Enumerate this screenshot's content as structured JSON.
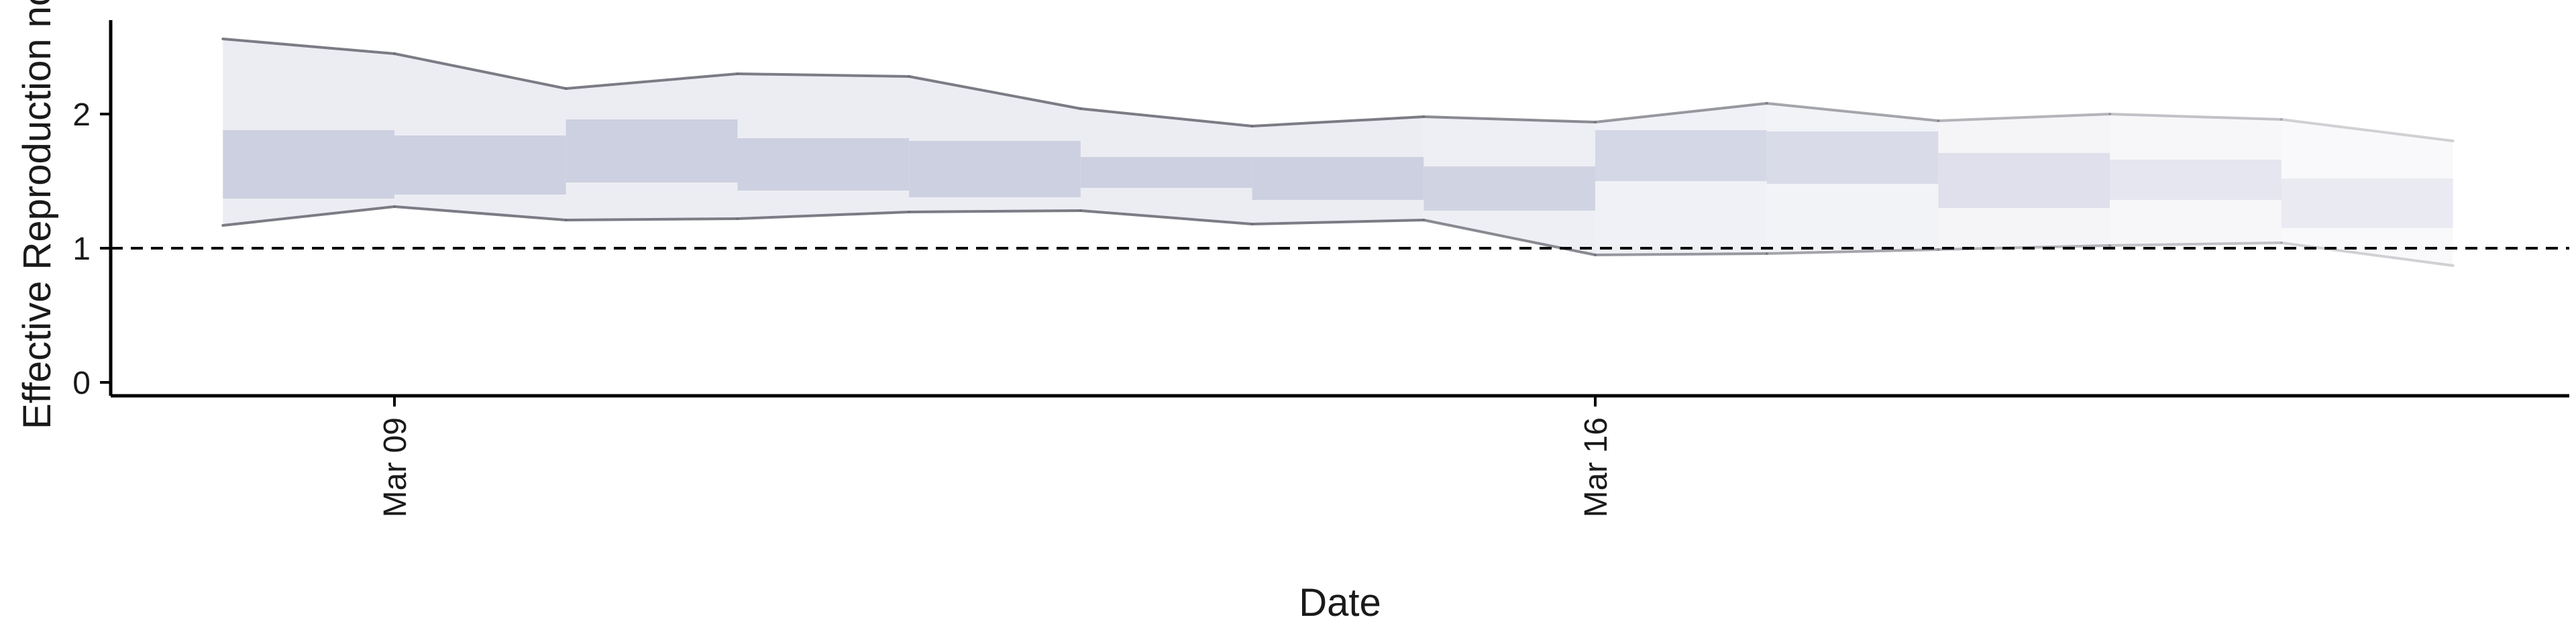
{
  "chart_data": {
    "type": "area",
    "xlabel": "Date",
    "ylabel": "Effective Reproduction no.",
    "ylim": [
      -0.1,
      2.75
    ],
    "yticks": [
      0,
      1,
      2
    ],
    "xticks": [
      {
        "date": "2020-03-09",
        "label": "Mar 09"
      },
      {
        "date": "2020-03-16",
        "label": "Mar 16"
      }
    ],
    "reference_line": {
      "y": 1,
      "style": "dashed"
    },
    "x": [
      "2020-03-08",
      "2020-03-09",
      "2020-03-10",
      "2020-03-11",
      "2020-03-12",
      "2020-03-13",
      "2020-03-14",
      "2020-03-15",
      "2020-03-16",
      "2020-03-17",
      "2020-03-18",
      "2020-03-19",
      "2020-03-20",
      "2020-03-21"
    ],
    "upper_95": [
      2.56,
      2.45,
      2.19,
      2.3,
      2.28,
      2.04,
      1.91,
      1.98,
      1.94,
      2.08,
      1.95,
      2.0,
      1.96,
      1.8
    ],
    "upper_50": [
      1.88,
      1.84,
      1.96,
      1.82,
      1.8,
      1.68,
      1.68,
      1.61,
      1.88,
      1.87,
      1.71,
      1.66,
      1.52,
      1.45
    ],
    "lower_50": [
      1.37,
      1.4,
      1.49,
      1.43,
      1.38,
      1.45,
      1.36,
      1.28,
      1.5,
      1.48,
      1.3,
      1.36,
      1.15,
      1.12
    ],
    "lower_95": [
      1.17,
      1.31,
      1.21,
      1.22,
      1.27,
      1.28,
      1.18,
      1.21,
      0.95,
      0.96,
      0.99,
      1.02,
      1.04,
      0.87
    ],
    "colors": {
      "band_outer": "#e6e7ef",
      "band_inner": "#c4c8db",
      "bound_line": "#6e6e78",
      "axis": "#000000"
    }
  }
}
